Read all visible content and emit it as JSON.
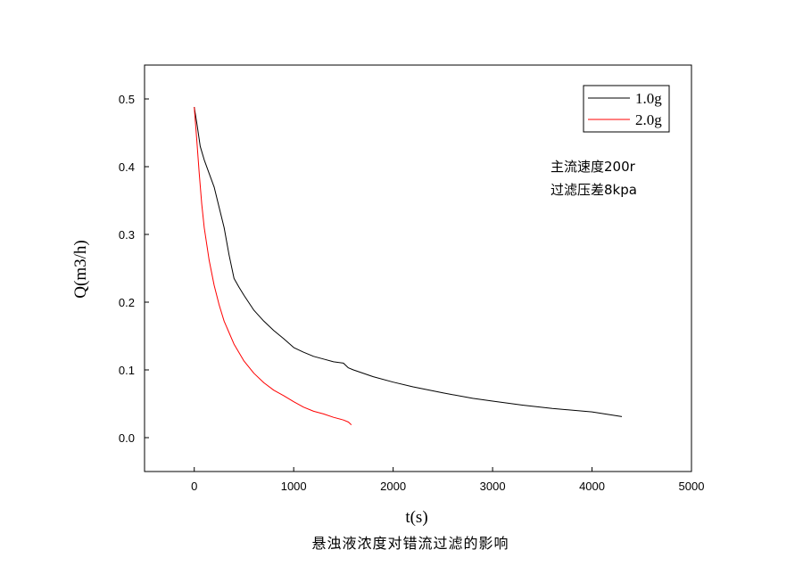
{
  "chart_data": {
    "type": "line",
    "title": "",
    "caption": "悬浊液浓度对错流过滤的影响",
    "xlabel": "t(s)",
    "ylabel": "Q(m3/h)",
    "xlim": [
      -500,
      5000
    ],
    "ylim": [
      -0.05,
      0.55
    ],
    "xticks": [
      0,
      1000,
      2000,
      3000,
      4000,
      5000
    ],
    "yticks": [
      0.0,
      0.1,
      0.2,
      0.3,
      0.4,
      0.5
    ],
    "xtick_labels": [
      "0",
      "1000",
      "2000",
      "3000",
      "4000",
      "5000"
    ],
    "ytick_labels": [
      "0.0",
      "0.1",
      "0.2",
      "0.3",
      "0.4",
      "0.5"
    ],
    "grid": false,
    "legend_position": "top-right",
    "annotations": [
      "主流速度200r",
      "过滤压差8kpa"
    ],
    "series": [
      {
        "name": "1.0g",
        "color": "#000000",
        "x": [
          0,
          30,
          60,
          100,
          150,
          200,
          250,
          300,
          350,
          400,
          450,
          500,
          600,
          700,
          800,
          900,
          1000,
          1100,
          1200,
          1300,
          1400,
          1500,
          1550,
          1600,
          1800,
          2000,
          2200,
          2500,
          2800,
          3000,
          3300,
          3600,
          4000,
          4300
        ],
        "y": [
          0.488,
          0.46,
          0.43,
          0.41,
          0.39,
          0.37,
          0.34,
          0.31,
          0.27,
          0.235,
          0.222,
          0.21,
          0.188,
          0.172,
          0.158,
          0.146,
          0.133,
          0.126,
          0.12,
          0.116,
          0.112,
          0.11,
          0.103,
          0.1,
          0.09,
          0.082,
          0.075,
          0.066,
          0.058,
          0.054,
          0.048,
          0.043,
          0.038,
          0.031
        ]
      },
      {
        "name": "2.0g",
        "color": "#ff0000",
        "x": [
          0,
          25,
          50,
          75,
          100,
          150,
          200,
          250,
          300,
          400,
          500,
          600,
          700,
          800,
          900,
          1000,
          1100,
          1200,
          1300,
          1400,
          1500,
          1550,
          1580
        ],
        "y": [
          0.488,
          0.44,
          0.39,
          0.345,
          0.31,
          0.262,
          0.225,
          0.196,
          0.172,
          0.138,
          0.113,
          0.095,
          0.081,
          0.07,
          0.062,
          0.053,
          0.045,
          0.039,
          0.035,
          0.03,
          0.026,
          0.023,
          0.019
        ]
      }
    ]
  }
}
